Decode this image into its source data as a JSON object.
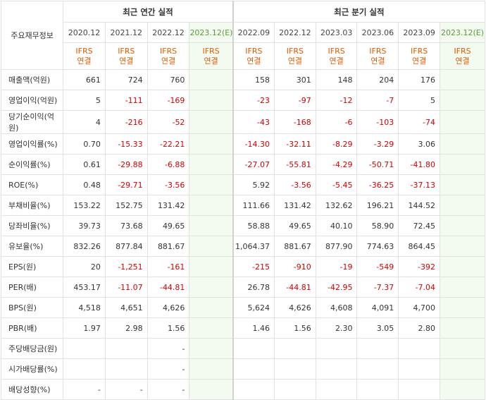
{
  "header": {
    "corner_label": "주요재무정보",
    "annual_title": "최근 연간 실적",
    "quarterly_title": "최근 분기 실적",
    "periods": [
      "2020.12",
      "2021.12",
      "2022.12",
      "2023.12(E)",
      "2022.09",
      "2022.12",
      "2023.03",
      "2023.06",
      "2023.09",
      "2023.12(E)"
    ],
    "basis_top": "IFRS",
    "basis_bottom": "연결"
  },
  "rows": [
    {
      "label": "매출액(억원)",
      "values": [
        "661",
        "724",
        "760",
        "",
        "158",
        "301",
        "148",
        "204",
        "176",
        ""
      ]
    },
    {
      "label": "영업이익(억원)",
      "values": [
        "5",
        "-111",
        "-169",
        "",
        "-23",
        "-97",
        "-12",
        "-7",
        "5",
        ""
      ]
    },
    {
      "label": "당기순이익(억원)",
      "values": [
        "4",
        "-216",
        "-52",
        "",
        "-43",
        "-168",
        "-6",
        "-103",
        "-74",
        ""
      ]
    },
    {
      "label": "영업이익률(%)",
      "values": [
        "0.70",
        "-15.33",
        "-22.21",
        "",
        "-14.30",
        "-32.11",
        "-8.29",
        "-3.29",
        "3.06",
        ""
      ]
    },
    {
      "label": "순이익률(%)",
      "values": [
        "0.61",
        "-29.88",
        "-6.88",
        "",
        "-27.07",
        "-55.81",
        "-4.29",
        "-50.71",
        "-41.80",
        ""
      ]
    },
    {
      "label": "ROE(%)",
      "values": [
        "0.48",
        "-29.71",
        "-3.56",
        "",
        "5.92",
        "-3.56",
        "-5.45",
        "-36.25",
        "-37.13",
        ""
      ]
    },
    {
      "label": "부채비율(%)",
      "values": [
        "153.22",
        "152.75",
        "131.42",
        "",
        "111.66",
        "131.42",
        "132.62",
        "196.21",
        "144.52",
        ""
      ]
    },
    {
      "label": "당좌비율(%)",
      "values": [
        "39.73",
        "73.68",
        "49.65",
        "",
        "58.88",
        "49.65",
        "40.10",
        "58.90",
        "72.45",
        ""
      ]
    },
    {
      "label": "유보율(%)",
      "values": [
        "832.26",
        "877.84",
        "881.67",
        "",
        "1,064.37",
        "881.67",
        "877.90",
        "774.63",
        "864.45",
        ""
      ]
    },
    {
      "label": "EPS(원)",
      "values": [
        "20",
        "-1,251",
        "-161",
        "",
        "-215",
        "-910",
        "-19",
        "-549",
        "-392",
        ""
      ]
    },
    {
      "label": "PER(배)",
      "values": [
        "453.17",
        "-11.07",
        "-44.81",
        "",
        "26.78",
        "-44.81",
        "-42.95",
        "-7.37",
        "-7.04",
        ""
      ]
    },
    {
      "label": "BPS(원)",
      "values": [
        "4,518",
        "4,651",
        "4,626",
        "",
        "5,624",
        "4,626",
        "4,608",
        "4,091",
        "4,700",
        ""
      ]
    },
    {
      "label": "PBR(배)",
      "values": [
        "1.97",
        "2.98",
        "1.56",
        "",
        "1.46",
        "1.56",
        "2.30",
        "3.05",
        "2.80",
        ""
      ]
    },
    {
      "label": "주당배당금(원)",
      "values": [
        "",
        "",
        "-",
        "",
        "",
        "",
        "",
        "",
        "",
        ""
      ]
    },
    {
      "label": "시가배당률(%)",
      "values": [
        "",
        "",
        "-",
        "",
        "",
        "",
        "",
        "",
        "",
        ""
      ]
    },
    {
      "label": "배당성향(%)",
      "values": [
        "-",
        "-",
        "-",
        "",
        "",
        "",
        "",
        "",
        "",
        ""
      ]
    }
  ]
}
